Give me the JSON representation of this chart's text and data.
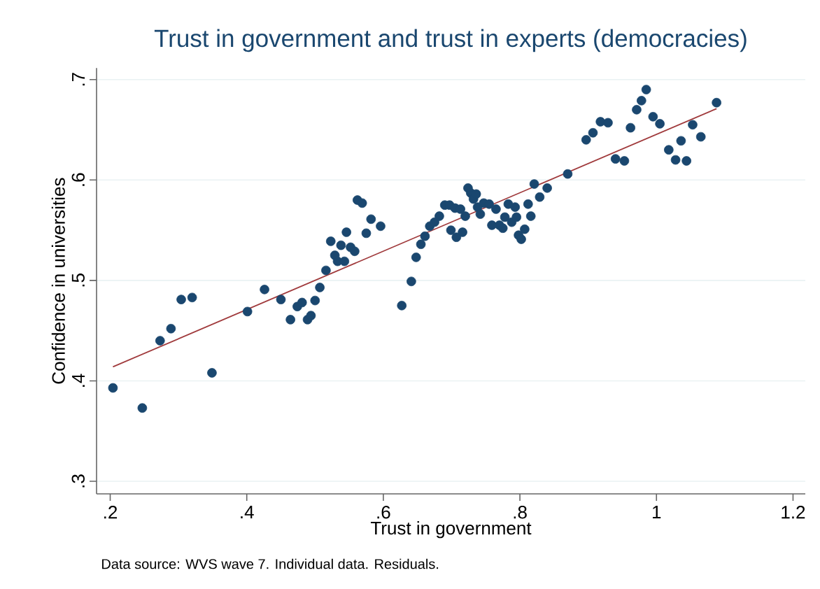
{
  "chart_data": {
    "type": "scatter",
    "title": "Trust in government and trust in experts (democracies)",
    "xlabel": "Trust in government",
    "ylabel": "Confidence in universities",
    "annotations": [
      "Data source: WVS wave 7. Individual data. Residuals."
    ],
    "xlim": [
      0.18,
      1.218
    ],
    "ylim": [
      0.2875,
      0.7115
    ],
    "xticks": [
      {
        "value": 0.2,
        "label": ".2"
      },
      {
        "value": 0.4,
        "label": ".4"
      },
      {
        "value": 0.6,
        "label": ".6"
      },
      {
        "value": 0.8,
        "label": ".8"
      },
      1,
      {
        "value": 1.2,
        "label": "1.2"
      }
    ],
    "yticks": [
      {
        "value": 0.3,
        "label": ".3"
      },
      {
        "value": 0.4,
        "label": ".4"
      },
      {
        "value": 0.5,
        "label": ".5"
      },
      {
        "value": 0.6,
        "label": ".6"
      },
      {
        "value": 0.7,
        "label": ".7"
      }
    ],
    "grid": "y",
    "legend": false,
    "marker": "circle",
    "series": [
      {
        "color": "#1a476f",
        "x": [
          0.204,
          0.247,
          0.273,
          0.289,
          0.304,
          0.32,
          0.349,
          0.401,
          0.426,
          0.45,
          0.464,
          0.474,
          0.481,
          0.489,
          0.494,
          0.5,
          0.507,
          0.516,
          0.523,
          0.529,
          0.533,
          0.538,
          0.543,
          0.546,
          0.552,
          0.558,
          0.562,
          0.569,
          0.575,
          0.582,
          0.596,
          0.627,
          0.641,
          0.648,
          0.655,
          0.661,
          0.668,
          0.675,
          0.682,
          0.69,
          0.697,
          0.699,
          0.705,
          0.707,
          0.713,
          0.716,
          0.72,
          0.724,
          0.728,
          0.732,
          0.736,
          0.738,
          0.742,
          0.747,
          0.755,
          0.759,
          0.765,
          0.77,
          0.775,
          0.778,
          0.783,
          0.788,
          0.793,
          0.795,
          0.798,
          0.802,
          0.807,
          0.812,
          0.816,
          0.821,
          0.829,
          0.84,
          0.87,
          0.897,
          0.907,
          0.918,
          0.929,
          0.94,
          0.953,
          0.962,
          0.971,
          0.978,
          0.985,
          0.995,
          1.005,
          1.018,
          1.028,
          1.036,
          1.044,
          1.053,
          1.065,
          1.088
        ],
        "values": [
          0.393,
          0.373,
          0.44,
          0.452,
          0.481,
          0.483,
          0.408,
          0.469,
          0.491,
          0.481,
          0.461,
          0.474,
          0.478,
          0.461,
          0.465,
          0.48,
          0.493,
          0.51,
          0.539,
          0.525,
          0.519,
          0.535,
          0.519,
          0.548,
          0.533,
          0.529,
          0.58,
          0.577,
          0.547,
          0.561,
          0.554,
          0.475,
          0.499,
          0.523,
          0.536,
          0.544,
          0.554,
          0.558,
          0.564,
          0.575,
          0.575,
          0.55,
          0.572,
          0.543,
          0.571,
          0.548,
          0.564,
          0.592,
          0.587,
          0.581,
          0.586,
          0.573,
          0.566,
          0.577,
          0.576,
          0.555,
          0.571,
          0.555,
          0.552,
          0.563,
          0.576,
          0.558,
          0.573,
          0.563,
          0.545,
          0.541,
          0.551,
          0.576,
          0.564,
          0.596,
          0.583,
          0.592,
          0.606,
          0.64,
          0.647,
          0.658,
          0.657,
          0.621,
          0.619,
          0.652,
          0.67,
          0.679,
          0.69,
          0.663,
          0.656,
          0.63,
          0.62,
          0.639,
          0.619,
          0.655,
          0.643,
          0.677
        ]
      },
      {
        "type": "line",
        "color": "#a03a3c",
        "x": [
          0.204,
          1.088
        ],
        "values": [
          0.414,
          0.671
        ],
        "marker": "none"
      }
    ]
  }
}
